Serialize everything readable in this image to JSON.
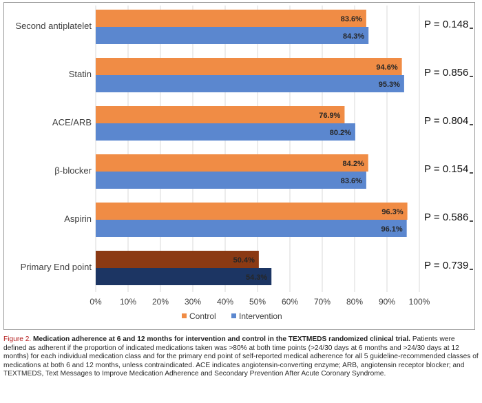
{
  "chart_data": {
    "type": "bar",
    "orientation": "horizontal",
    "categories": [
      "Second antiplatelet",
      "Statin",
      "ACE/ARB",
      "β-blocker",
      "Aspirin",
      "Primary End point"
    ],
    "series": [
      {
        "name": "Control",
        "values": [
          83.6,
          94.6,
          76.9,
          84.2,
          96.3,
          50.4
        ],
        "labels": [
          "83.6%",
          "94.6%",
          "76.9%",
          "84.2%",
          "96.3%",
          "50.4%"
        ],
        "color": "#f08c45",
        "highlight_color": "#8b3a14"
      },
      {
        "name": "Intervention",
        "values": [
          84.3,
          95.3,
          80.2,
          83.6,
          96.1,
          54.3
        ],
        "labels": [
          "84.3%",
          "95.3%",
          "80.2%",
          "83.6%",
          "96.1%",
          "54.3%"
        ],
        "color": "#5b87cf",
        "highlight_color": "#1c3563"
      }
    ],
    "p_values": [
      "P = 0.148",
      "P = 0.856",
      "P = 0.804",
      "P = 0.154",
      "P = 0.586",
      "P = 0.739"
    ],
    "x_ticks": [
      "0%",
      "10%",
      "20%",
      "30%",
      "40%",
      "50%",
      "60%",
      "70%",
      "80%",
      "90%",
      "100%"
    ],
    "xlim": [
      0,
      100
    ],
    "grid": true,
    "legend_position": "bottom"
  },
  "caption": {
    "lead": "Figure 2.",
    "title": "Medication adherence at 6 and 12 months for intervention and control in the TEXTMEDS randomized clinical trial.",
    "body": "Patients were defined as adherent if the proportion of indicated medications taken was >80% at both time points (>24/30 days at 6 months and >24/30 days at 12 months) for each individual medication class and for the primary end point of self-reported medical adherence for all 5 guideline-recommended classes of medications at both 6 and 12 months, unless contraindicated. ACE indicates angiotensin-converting enzyme; ARB, angiotensin receptor blocker; and TEXTMEDS, Text Messages to Improve Medication Adherence and Secondary Prevention After Acute Coronary Syndrome."
  }
}
